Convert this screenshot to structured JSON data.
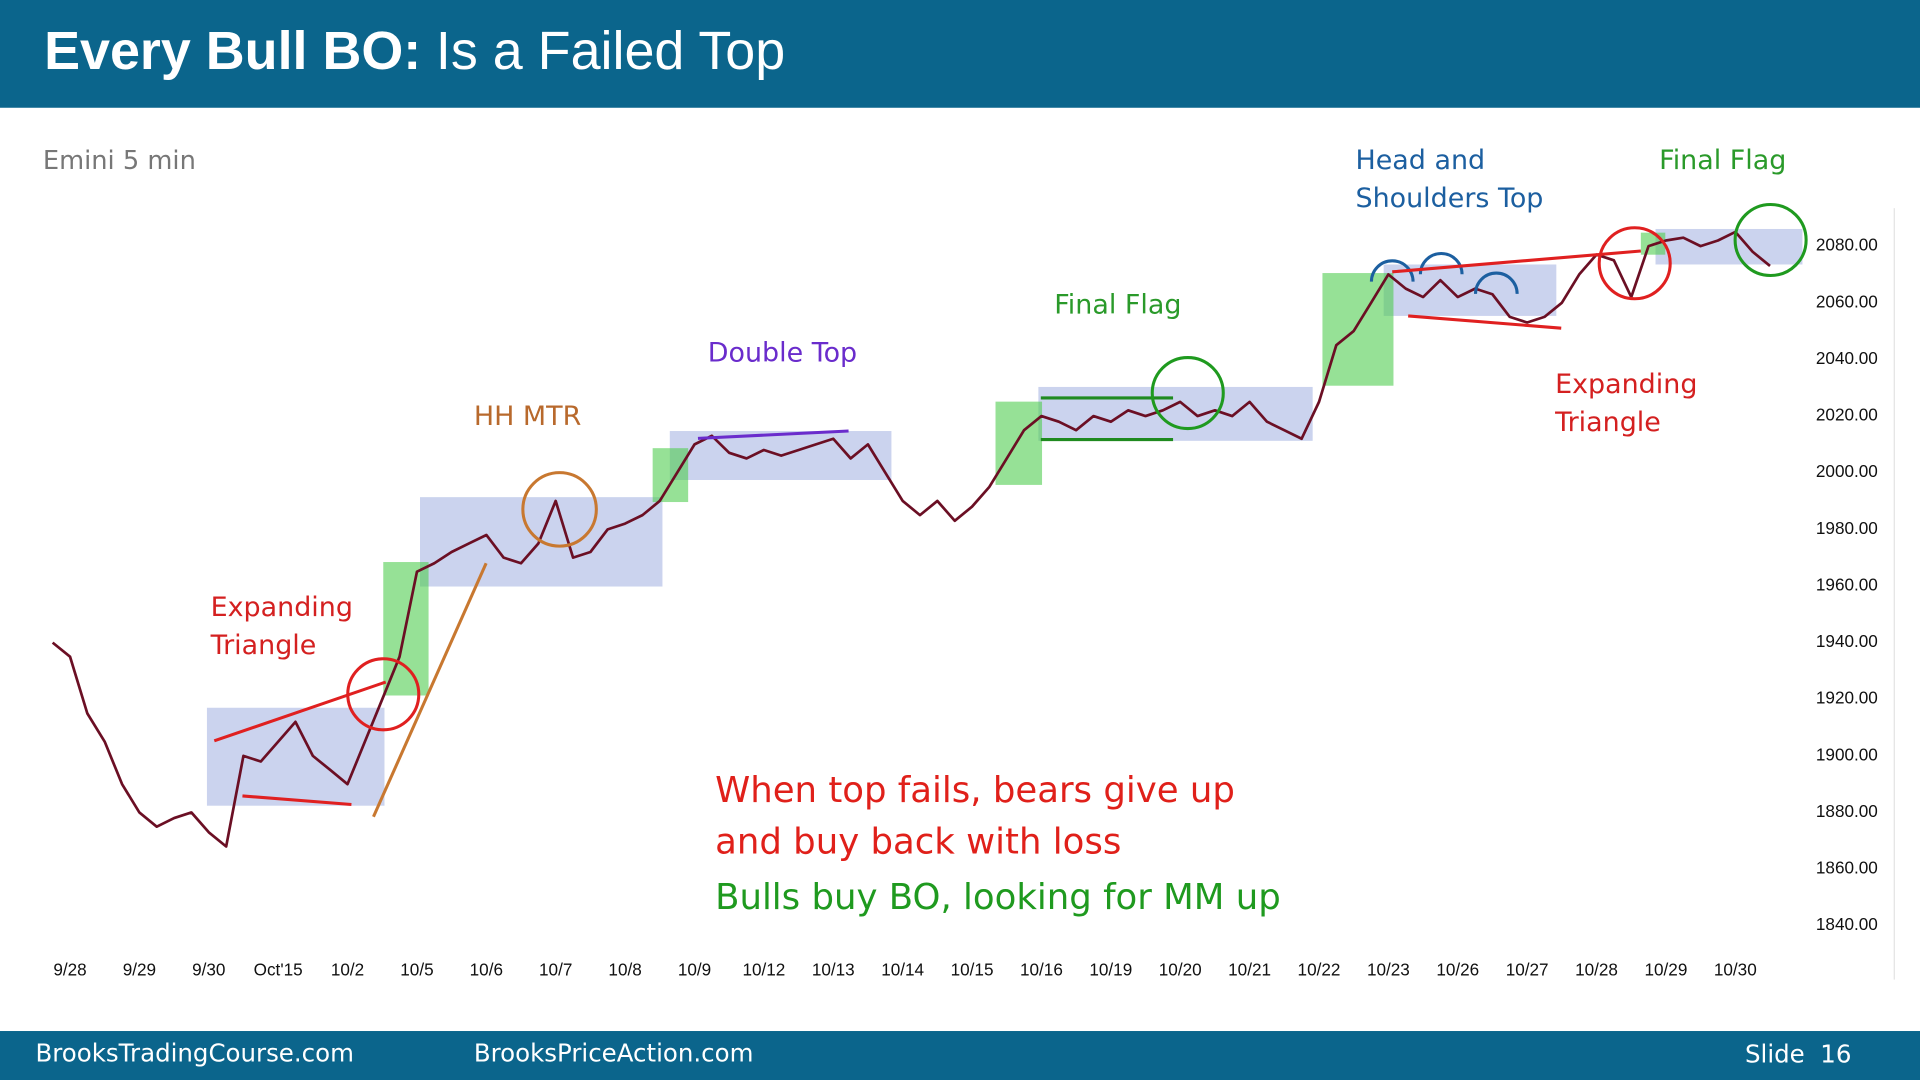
{
  "header": {
    "title_bold": "Every Bull BO:",
    "title_rest": "Is a Failed Top"
  },
  "footer": {
    "left": "BrooksTradingCourse.com",
    "middle": "BrooksPriceAction.com",
    "slide": "Slide  16"
  },
  "chart_data": {
    "type": "line",
    "subtitle": "Emini 5 min",
    "categories": [
      null,
      "9/28",
      null,
      null,
      null,
      "9/29",
      null,
      null,
      null,
      "9/30",
      null,
      null,
      null,
      "Oct'15",
      null,
      null,
      null,
      "10/2",
      null,
      null,
      null,
      "10/5",
      null,
      null,
      null,
      "10/6",
      null,
      null,
      null,
      "10/7",
      null,
      null,
      null,
      "10/8",
      null,
      null,
      null,
      "10/9",
      null,
      null,
      null,
      "10/12",
      null,
      null,
      null,
      "10/13",
      null,
      null,
      null,
      "10/14",
      null,
      null,
      null,
      "10/15",
      null,
      null,
      null,
      "10/16",
      null,
      null,
      null,
      "10/19",
      null,
      null,
      null,
      "10/20",
      null,
      null,
      null,
      "10/21",
      null,
      null,
      null,
      "10/22",
      null,
      null,
      null,
      "10/23",
      null,
      null,
      null,
      "10/26",
      null,
      null,
      null,
      "10/27",
      null,
      null,
      null,
      "10/28",
      null,
      null,
      null,
      "10/29",
      null,
      null,
      null,
      "10/30",
      null,
      null
    ],
    "series": [
      {
        "color": "#6b0f24",
        "values": [
          1940,
          1935,
          1915,
          1905,
          1890,
          1880,
          1875,
          1878,
          1880,
          1873,
          1868,
          1900,
          1898,
          1905,
          1912,
          1900,
          1895,
          1890,
          1905,
          1920,
          1935,
          1965,
          1968,
          1972,
          1975,
          1978,
          1970,
          1968,
          1975,
          1990,
          1970,
          1972,
          1980,
          1982,
          1985,
          1990,
          2000,
          2010,
          2013,
          2007,
          2005,
          2008,
          2006,
          2008,
          2010,
          2012,
          2005,
          2010,
          2000,
          1990,
          1985,
          1990,
          1983,
          1988,
          1995,
          2005,
          2015,
          2020,
          2018,
          2015,
          2020,
          2018,
          2022,
          2020,
          2022,
          2025,
          2020,
          2022,
          2020,
          2025,
          2018,
          2015,
          2012,
          2025,
          2045,
          2050,
          2060,
          2070,
          2065,
          2062,
          2068,
          2062,
          2065,
          2063,
          2055,
          2053,
          2055,
          2060,
          2070,
          2077,
          2075,
          2062,
          2080,
          2082,
          2083,
          2080,
          2082,
          2085,
          2078,
          2073
        ]
      }
    ],
    "ylim": [
      1830,
      2095
    ],
    "yticks": [
      {
        "value": 1840,
        "label": "1840.00"
      },
      {
        "value": 1860,
        "label": "1860.00"
      },
      {
        "value": 1880,
        "label": "1880.00"
      },
      {
        "value": 1900,
        "label": "1900.00"
      },
      {
        "value": 1920,
        "label": "1920.00"
      },
      {
        "value": 1940,
        "label": "1940.00"
      },
      {
        "value": 1960,
        "label": "1960.00"
      },
      {
        "value": 1980,
        "label": "1980.00"
      },
      {
        "value": 2000,
        "label": "2000.00"
      },
      {
        "value": 2020,
        "label": "2020.00"
      },
      {
        "value": 2040,
        "label": "2040.00"
      },
      {
        "value": 2060,
        "label": "2060.00"
      },
      {
        "value": 2080,
        "label": "2080.00"
      }
    ],
    "grid": false,
    "annotations": [
      {
        "lines": [
          "Expanding",
          "Triangle"
        ],
        "color": "#d42020"
      },
      {
        "lines": [
          "HH MTR"
        ],
        "color": "#b8692c"
      },
      {
        "lines": [
          "Double Top"
        ],
        "color": "#6a2ccc"
      },
      {
        "lines": [
          "Final Flag"
        ],
        "color": "#2a9a2a"
      },
      {
        "lines": [
          "Head and",
          "Shoulders Top"
        ],
        "color": "#1c5fa0"
      },
      {
        "lines": [
          "Final Flag"
        ],
        "color": "#2a9a2a"
      },
      {
        "lines": [
          "Expanding",
          "Triangle"
        ],
        "color": "#d42020"
      },
      {
        "lines": [
          "When top fails, bears give up",
          "and buy back with loss"
        ],
        "color": "#e0201a"
      },
      {
        "lines": [
          "Bulls buy BO, looking for MM up"
        ],
        "color": "#1f9a1f"
      }
    ]
  }
}
